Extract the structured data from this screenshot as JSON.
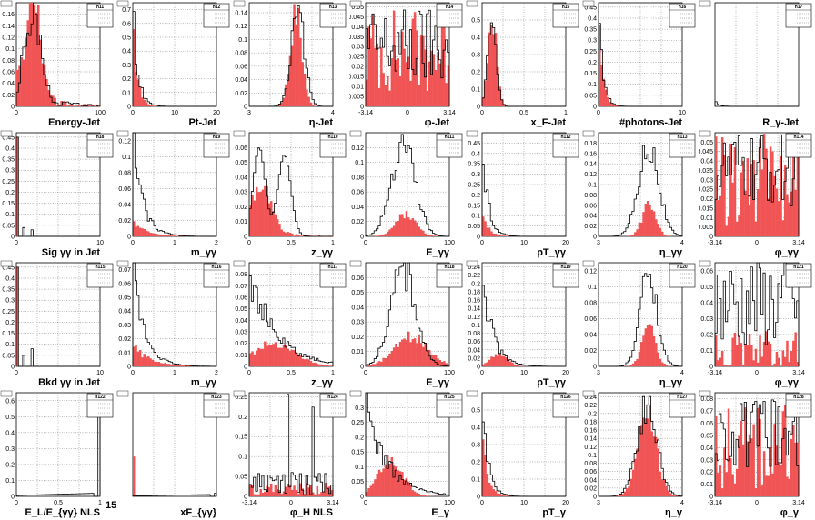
{
  "colors": {
    "fill": "#f05454",
    "outline": "#000000",
    "grid": "#777777"
  },
  "bins": 40,
  "panels": [
    {
      "id": "h11",
      "label": "h11",
      "xtitle": "Energy-Jet",
      "ticks": [
        "0",
        "100"
      ],
      "ymax": 0.18,
      "yticks": [
        "0",
        "0.02",
        "0.04",
        "0.06",
        "0.08",
        "0.1",
        "0.12",
        "0.14",
        "0.16"
      ],
      "open": "peak:0.20,0.09,0.15;tail:0.06",
      "filled": "peak:0.20,0.09,0.17;tail:0.05"
    },
    {
      "id": "h12",
      "label": "h12",
      "xtitle": "Pt-Jet",
      "ticks": [
        "0",
        "10",
        "20"
      ],
      "ymax": 0.75,
      "yticks": [
        "0",
        "0.1",
        "0.2",
        "0.3",
        "0.4",
        "0.5",
        "0.6",
        "0.7"
      ],
      "open": "decay:0.72,0.06",
      "filled": "decay:0.68,0.05"
    },
    {
      "id": "h13",
      "label": "h13",
      "xtitle": "η-Jet",
      "ticks": [
        "3",
        "4"
      ],
      "ymax": 0.155,
      "yticks": [
        "0",
        "0.02",
        "0.04",
        "0.06",
        "0.08",
        "0.1",
        "0.12",
        "0.14"
      ],
      "open": "peak:0.58,0.08,0.14",
      "filled": "peak:0.56,0.07,0.14"
    },
    {
      "id": "h14",
      "label": "h14",
      "xtitle": "φ-Jet",
      "ticks": [
        "-3.14",
        "0",
        "3.14"
      ],
      "ymax": 0.052,
      "yticks": [
        "0",
        "0.005",
        "0.01",
        "0.015",
        "0.02",
        "0.025",
        "0.03",
        "0.035",
        "0.04",
        "0.045",
        "0.05"
      ],
      "open": "flat:0.03,0.02",
      "filled": "flat:0.028,0.022"
    },
    {
      "id": "h15",
      "label": "h15",
      "xtitle": "x_F-Jet",
      "ticks": [
        "0",
        "0.5",
        "1"
      ],
      "ymax": 0.6,
      "yticks": [
        "0",
        "0.1",
        "0.2",
        "0.3",
        "0.4",
        "0.5"
      ],
      "open": "peak:0.12,0.05,0.56",
      "filled": "peak:0.12,0.05,0.55"
    },
    {
      "id": "h16",
      "label": "h16",
      "xtitle": "#photons-Jet",
      "ticks": [
        "0",
        "10"
      ],
      "ymax": 0.47,
      "yticks": [
        "0",
        "0.05",
        "0.1",
        "0.15",
        "0.2",
        "0.25",
        "0.3",
        "0.35",
        "0.4",
        "0.45"
      ],
      "open": "decay:0.46,0.05",
      "filled": "decay:0.44,0.045"
    },
    {
      "id": "h17",
      "label": "h17",
      "xtitle": "R_γ-Jet",
      "ticks": [],
      "ymax": 1.0,
      "yticks": [],
      "open": "decay:0.08,0.04",
      "filled": "none"
    },
    {
      "id": "h18",
      "label": "h18",
      "xtitle": "Sig γγ in Jet",
      "ticks": [
        "0",
        "10"
      ],
      "ymax": 0.47,
      "yticks": [
        "0",
        "0.05",
        "0.1",
        "0.15",
        "0.2",
        "0.25",
        "0.3",
        "0.35",
        "0.4",
        "0.45"
      ],
      "open": "spikes:0.45,0.04,0.03",
      "filled": "spikes:0.45,0,0"
    },
    {
      "id": "h19",
      "label": "h19",
      "xtitle": "m_γγ",
      "ticks": [
        "0",
        "1",
        "2"
      ],
      "ymax": 0.13,
      "yticks": [
        "0",
        "0.02",
        "0.04",
        "0.06",
        "0.08",
        "0.1",
        "0.12"
      ],
      "open": "decay:0.12,0.12",
      "filled": "decay:0.02,0.15"
    },
    {
      "id": "h110",
      "label": "h110",
      "xtitle": "z_γγ",
      "ticks": [
        "0",
        "0.5",
        "1"
      ],
      "ymax": 0.07,
      "yticks": [
        "0",
        "0.01",
        "0.02",
        "0.03",
        "0.04",
        "0.05",
        "0.06"
      ],
      "open": "double:0.06,0.055",
      "filled": "peak:0.15,0.12,0.03;tail:0.008"
    },
    {
      "id": "h111",
      "label": "h111",
      "xtitle": "E_γγ",
      "ticks": [
        "0",
        "100"
      ],
      "ymax": 0.14,
      "yticks": [
        "0",
        "0.02",
        "0.04",
        "0.06",
        "0.08",
        "0.1",
        "0.12"
      ],
      "open": "peak:0.45,0.14,0.13",
      "filled": "peak:0.48,0.12,0.03"
    },
    {
      "id": "h112",
      "label": "h112",
      "xtitle": "pT_γγ",
      "ticks": [
        "0",
        "10",
        "20"
      ],
      "ymax": 0.5,
      "yticks": [
        "0",
        "0.05",
        "0.1",
        "0.15",
        "0.2",
        "0.25",
        "0.3",
        "0.35",
        "0.4",
        "0.45"
      ],
      "open": "decay:0.48,0.07",
      "filled": "decay:0.12,0.07"
    },
    {
      "id": "h113",
      "label": "h113",
      "xtitle": "η_γγ",
      "ticks": [
        "3",
        "4"
      ],
      "ymax": 0.2,
      "yticks": [
        "0",
        "0.02",
        "0.04",
        "0.06",
        "0.08",
        "0.1",
        "0.12",
        "0.14",
        "0.16",
        "0.18"
      ],
      "open": "peak:0.6,0.12,0.18",
      "filled": "peak:0.6,0.08,0.06"
    },
    {
      "id": "h114",
      "label": "h114",
      "xtitle": "φ_γγ",
      "ticks": [
        "-3.14",
        "0",
        "3.14"
      ],
      "ymax": 0.055,
      "yticks": [
        "0",
        "0.005",
        "0.01",
        "0.015",
        "0.02",
        "0.025",
        "0.03",
        "0.035",
        "0.04",
        "0.045",
        "0.05"
      ],
      "open": "flat:0.035,0.02",
      "filled": "flat:0.03,0.025"
    },
    {
      "id": "h115",
      "label": "h115",
      "xtitle": "Bkd γγ in Jet",
      "ticks": [
        "0",
        "10"
      ],
      "ymax": 0.47,
      "yticks": [
        "0",
        "0.05",
        "0.1",
        "0.15",
        "0.2",
        "0.25",
        "0.3",
        "0.35",
        "0.4",
        "0.45"
      ],
      "open": "spikes:0.45,0.05,0.08",
      "filled": "spikes:0.45,0,0"
    },
    {
      "id": "h116",
      "label": "h116",
      "xtitle": "m_γγ",
      "ticks": [
        "0",
        "1",
        "2"
      ],
      "ymax": 0.075,
      "yticks": [
        "0",
        "0.01",
        "0.02",
        "0.03",
        "0.04",
        "0.05",
        "0.06",
        "0.07"
      ],
      "open": "decay:0.07,0.14",
      "filled": "decay:0.015,0.2"
    },
    {
      "id": "h117",
      "label": "h117",
      "xtitle": "z_γγ",
      "ticks": [
        "0",
        "0.5",
        "1"
      ],
      "ymax": 0.09,
      "yticks": [
        "0",
        "0.01",
        "0.02",
        "0.03",
        "0.04",
        "0.05",
        "0.06",
        "0.07",
        "0.08"
      ],
      "open": "decay:0.085,0.3",
      "filled": "peak:0.3,0.25,0.02"
    },
    {
      "id": "h118",
      "label": "h118",
      "xtitle": "E_γγ",
      "ticks": [
        "0",
        "100"
      ],
      "ymax": 0.07,
      "yticks": [
        "0",
        "0.01",
        "0.02",
        "0.03",
        "0.04",
        "0.05",
        "0.06"
      ],
      "open": "peak:0.45,0.15,0.065",
      "filled": "peak:0.55,0.2,0.02"
    },
    {
      "id": "h119",
      "label": "h119",
      "xtitle": "pT_γγ",
      "ticks": [
        "0",
        "10",
        "20"
      ],
      "ymax": 0.25,
      "yticks": [
        "0",
        "0.02",
        "0.04",
        "0.06",
        "0.08",
        "0.1",
        "0.12",
        "0.14",
        "0.16",
        "0.18",
        "0.2",
        "0.22",
        "0.24"
      ],
      "open": "decay:0.24,0.12",
      "filled": "peak:0.2,0.1,0.03"
    },
    {
      "id": "h120",
      "label": "h120",
      "xtitle": "η_γγ",
      "ticks": [
        "3",
        "4"
      ],
      "ymax": 0.13,
      "yticks": [
        "0",
        "0.02",
        "0.04",
        "0.06",
        "0.08",
        "0.1",
        "0.12"
      ],
      "open": "peak:0.6,0.1,0.12",
      "filled": "peak:0.6,0.08,0.05"
    },
    {
      "id": "h121",
      "label": "h121",
      "xtitle": "φ_γγ",
      "ticks": [
        "-3.14",
        "0",
        "3.14"
      ],
      "ymax": 0.065,
      "yticks": [
        "0",
        "0.01",
        "0.02",
        "0.03",
        "0.04",
        "0.05",
        "0.06"
      ],
      "open": "flat:0.04,0.03",
      "filled": "flat:0.01,0.012"
    },
    {
      "id": "h122",
      "label": "h122",
      "xtitle": "E_L/E_{γγ} NLS",
      "ticks": [
        "0",
        "0.5",
        "1"
      ],
      "ymax": 0.65,
      "yticks": [
        "0",
        "0.1",
        "0.2",
        "0.3",
        "0.4",
        "0.5",
        "0.6"
      ],
      "open": "rise:0.05,0.55",
      "filled": "spikes:0,0,0"
    },
    {
      "id": "h123",
      "label": "h123",
      "xtitle": "xF_{γγ}",
      "ticks": [],
      "ymax": 0.65,
      "yticks": [],
      "open": "rise:0.03,0.02",
      "filled": "spikes:0.25,0,0"
    },
    {
      "id": "h124",
      "label": "h124",
      "xtitle": "φ_H NLS",
      "ticks": [
        "-3.14",
        "0",
        "3.14"
      ],
      "ymax": 0.26,
      "yticks": [
        "0",
        "0.05",
        "0.1",
        "0.15",
        "0.2",
        "0.25"
      ],
      "open": "flat:0.03,0.03;spikes2:0.24,0.22",
      "filled": "flat:0.02,0.015"
    },
    {
      "id": "h125",
      "label": "h125",
      "xtitle": "E_γ",
      "ticks": [
        "0",
        "100"
      ],
      "ymax": 0.35,
      "yticks": [
        "0",
        "0.05",
        "0.1",
        "0.15",
        "0.2",
        "0.25",
        "0.3"
      ],
      "open": "decay:0.32,0.25",
      "filled": "peak:0.3,0.15,0.12"
    },
    {
      "id": "h126",
      "label": "h126",
      "xtitle": "pT_γ",
      "ticks": [
        "0",
        "10",
        "20"
      ],
      "ymax": 0.6,
      "yticks": [
        "0",
        "0.1",
        "0.2",
        "0.3",
        "0.4",
        "0.5"
      ],
      "open": "decay:0.55,0.07",
      "filled": "decay:0.45,0.06"
    },
    {
      "id": "h127",
      "label": "h127",
      "xtitle": "η_γ",
      "ticks": [
        "3",
        "4"
      ],
      "ymax": 0.25,
      "yticks": [
        "0",
        "0.02",
        "0.04",
        "0.06",
        "0.08",
        "0.1",
        "0.12",
        "0.14",
        "0.16",
        "0.18",
        "0.2",
        "0.22",
        "0.24"
      ],
      "open": "peak:0.58,0.12,0.22",
      "filled": "peak:0.58,0.11,0.2"
    },
    {
      "id": "h128",
      "label": "h128",
      "xtitle": "φ_γ",
      "ticks": [
        "-3.14",
        "0",
        "3.14"
      ],
      "ymax": 0.085,
      "yticks": [
        "0",
        "0.01",
        "0.02",
        "0.03",
        "0.04",
        "0.05",
        "0.06",
        "0.07",
        "0.08"
      ],
      "open": "flat:0.05,0.03",
      "filled": "flat:0.04,0.035"
    }
  ],
  "extra_label": "15"
}
